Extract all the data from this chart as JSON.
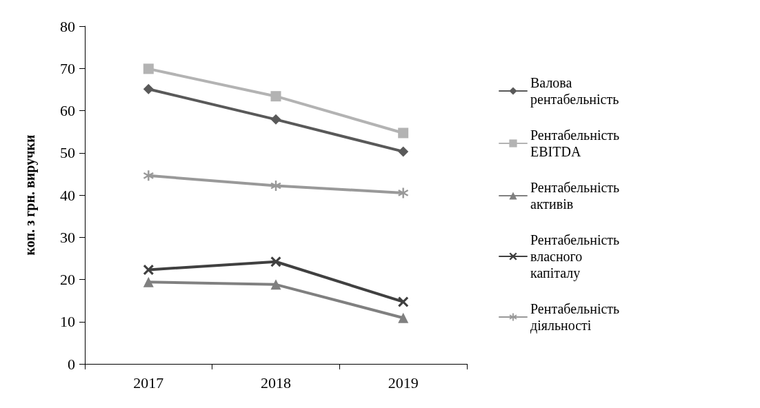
{
  "chart_data": {
    "type": "line",
    "ylabel": "коп. з грн. виручки",
    "categories": [
      "2017",
      "2018",
      "2019"
    ],
    "ylim": [
      0,
      80
    ],
    "yticks": [
      0,
      10,
      20,
      30,
      40,
      50,
      60,
      70,
      80
    ],
    "grid": false,
    "legend": "right",
    "line_style": "solid",
    "series": [
      {
        "name": "Валова рентабельність",
        "color": "#595959",
        "marker": "diamond",
        "values": [
          65.1,
          57.9,
          50.3
        ]
      },
      {
        "name": "Рентабельність EBITDA",
        "color": "#b3b3b3",
        "marker": "square",
        "values": [
          69.9,
          63.4,
          54.7
        ]
      },
      {
        "name": "Рентабельність активів",
        "color": "#808080",
        "marker": "triangle",
        "values": [
          19.4,
          18.8,
          10.9
        ]
      },
      {
        "name": "Рентабельність власного капіталу",
        "color": "#404040",
        "marker": "cross",
        "values": [
          22.3,
          24.2,
          14.7
        ]
      },
      {
        "name": "Рентабельність діяльності",
        "color": "#999999",
        "marker": "star",
        "values": [
          44.6,
          42.2,
          40.5
        ]
      }
    ]
  }
}
